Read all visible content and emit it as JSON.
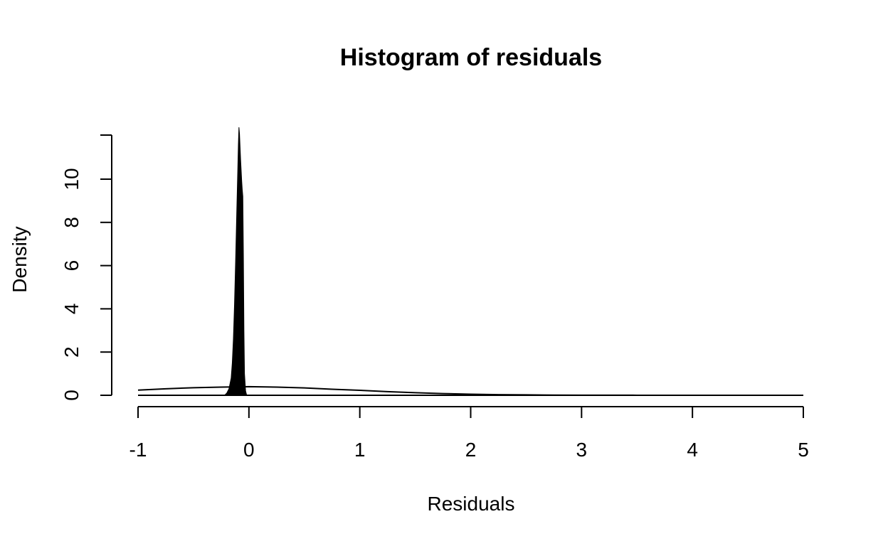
{
  "chart_data": {
    "type": "area",
    "title": "Histogram of residuals",
    "xlabel": "Residuals",
    "ylabel": "Density",
    "xlim": [
      -1,
      5
    ],
    "ylim": [
      0,
      12
    ],
    "x_ticks": [
      -1,
      0,
      1,
      2,
      3,
      4,
      5
    ],
    "x_tick_labels": [
      "-1",
      "0",
      "1",
      "2",
      "3",
      "4",
      "5"
    ],
    "y_ticks": [
      0,
      2,
      4,
      6,
      8,
      10
    ],
    "y_tick_labels": [
      "0",
      "2",
      "4",
      "6",
      "8",
      "10"
    ],
    "grid": false,
    "series": [
      {
        "style": "filled",
        "color": "#000000",
        "x": [
          -0.22,
          -0.2,
          -0.18,
          -0.16,
          -0.15,
          -0.14,
          -0.13,
          -0.12,
          -0.11,
          -0.1,
          -0.095,
          -0.09,
          -0.085,
          -0.08,
          -0.075,
          -0.07,
          -0.065,
          -0.06,
          -0.055,
          -0.05,
          -0.045,
          -0.04,
          -0.03,
          -0.02
        ],
        "y": [
          0,
          0.1,
          0.3,
          0.8,
          1.5,
          2.6,
          4.2,
          6.2,
          8.4,
          10.5,
          11.6,
          12.4,
          12.1,
          11.5,
          10.9,
          10.4,
          9.9,
          9.5,
          9.2,
          6.5,
          3.0,
          1.0,
          0.2,
          0
        ]
      },
      {
        "style": "line",
        "color": "#000000",
        "x": [
          -1,
          -0.75,
          -0.5,
          -0.25,
          0,
          0.25,
          0.5,
          0.75,
          1,
          1.25,
          1.5,
          1.75,
          2,
          2.25,
          2.5,
          2.75,
          3,
          3.5,
          4,
          4.5,
          5
        ],
        "y": [
          0.24,
          0.3,
          0.35,
          0.38,
          0.4,
          0.38,
          0.34,
          0.28,
          0.23,
          0.17,
          0.12,
          0.08,
          0.05,
          0.03,
          0.02,
          0.01,
          0.005,
          0.002,
          0.001,
          0.0005,
          0.0002
        ]
      },
      {
        "style": "baseline",
        "color": "#000000",
        "x": [
          -1,
          5
        ],
        "y": [
          0,
          0
        ]
      }
    ]
  }
}
